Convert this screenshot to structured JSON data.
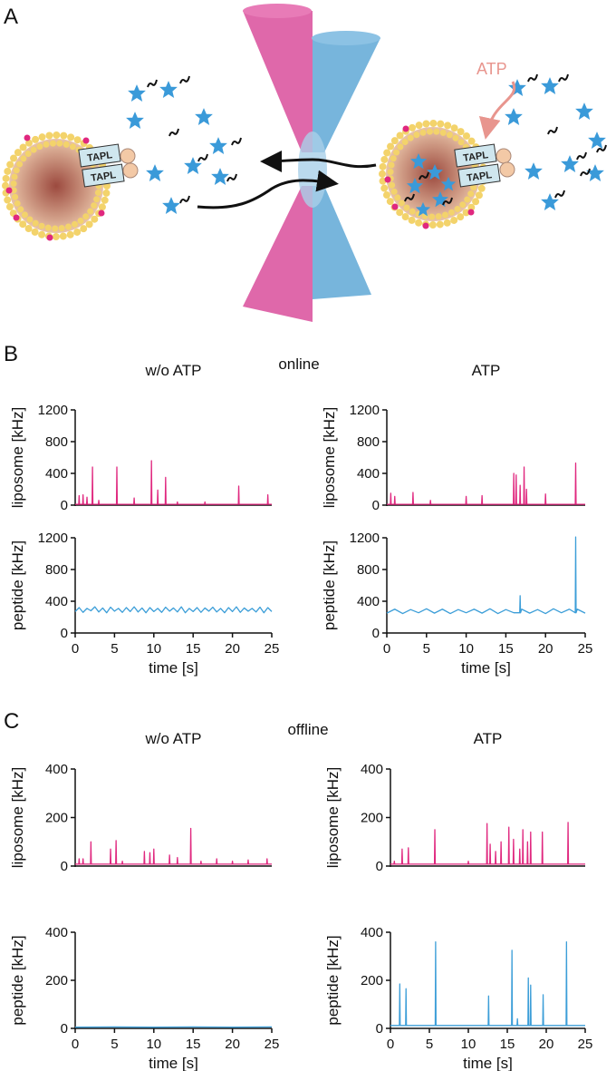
{
  "diagram": {
    "label": "A",
    "atp": "ATP",
    "tapl": [
      "TAPL",
      "TAPL",
      "TAPL",
      "TAPL"
    ]
  },
  "panels": [
    {
      "label": "B",
      "title": "online"
    },
    {
      "label": "C",
      "title": "offline"
    }
  ],
  "chart_data": [
    {
      "type": "line",
      "title": "w/o ATP",
      "ylabel": "liposome [kHz]",
      "color": "#e0287f",
      "xlim": [
        0,
        25
      ],
      "ylim": [
        0,
        1200
      ],
      "yticks": [
        0,
        400,
        800,
        1200
      ],
      "x": [
        0,
        0.45,
        0.5,
        0.55,
        0.95,
        1,
        1.05,
        1.45,
        1.5,
        1.55,
        2.15,
        2.2,
        2.25,
        2.95,
        3,
        3.05,
        5.25,
        5.3,
        5.35,
        7.45,
        7.5,
        7.55,
        9.65,
        9.7,
        9.75,
        10.45,
        10.5,
        10.55,
        11.45,
        11.5,
        11.55,
        12.95,
        13,
        13.05,
        16.45,
        16.5,
        16.55,
        20.75,
        20.8,
        20.85,
        24.45,
        24.5,
        24.55,
        25
      ],
      "values": [
        10,
        10,
        120,
        10,
        10,
        130,
        10,
        10,
        100,
        10,
        10,
        480,
        10,
        10,
        60,
        10,
        10,
        480,
        10,
        10,
        90,
        10,
        10,
        560,
        10,
        10,
        190,
        10,
        10,
        350,
        10,
        10,
        40,
        10,
        10,
        40,
        10,
        10,
        240,
        10,
        10,
        130,
        10,
        10
      ]
    },
    {
      "type": "line",
      "ylabel": "peptide [kHz]",
      "xlabel": "time [s]",
      "color": "#3c9ed8",
      "xlim": [
        0,
        25
      ],
      "ylim": [
        0,
        1200
      ],
      "yticks": [
        0,
        400,
        800,
        1200
      ],
      "xticks": [
        0,
        5,
        10,
        15,
        20,
        25
      ],
      "x": [
        0,
        0.5,
        1,
        1.5,
        2,
        2.5,
        3,
        3.5,
        4,
        4.5,
        5,
        5.5,
        6,
        6.5,
        7,
        7.5,
        8,
        8.5,
        9,
        9.5,
        10,
        10.5,
        11,
        11.5,
        12,
        12.5,
        13,
        13.5,
        14,
        14.5,
        15,
        15.5,
        16,
        16.5,
        17,
        17.5,
        18,
        18.5,
        19,
        19.5,
        20,
        20.5,
        21,
        21.5,
        22,
        22.5,
        23,
        23.5,
        24,
        24.5,
        25
      ],
      "values": [
        270,
        320,
        260,
        310,
        280,
        330,
        265,
        315,
        255,
        325,
        275,
        310,
        260,
        320,
        270,
        330,
        265,
        315,
        255,
        320,
        270,
        310,
        260,
        325,
        275,
        315,
        265,
        330,
        255,
        310,
        270,
        320,
        260,
        315,
        275,
        325,
        265,
        310,
        255,
        320,
        270,
        330,
        260,
        315,
        275,
        310,
        265,
        325,
        255,
        320,
        270
      ]
    },
    {
      "type": "line",
      "title": "ATP",
      "ylabel": "liposome [kHz]",
      "color": "#e0287f",
      "xlim": [
        0,
        25
      ],
      "ylim": [
        0,
        1200
      ],
      "yticks": [
        0,
        400,
        800,
        1200
      ],
      "x": [
        0,
        0.45,
        0.5,
        0.55,
        0.95,
        1,
        1.05,
        3.25,
        3.3,
        3.35,
        5.45,
        5.5,
        5.55,
        9.95,
        10,
        10.05,
        11.95,
        12,
        12.05,
        15.95,
        16,
        16.05,
        16.25,
        16.3,
        16.35,
        16.75,
        16.8,
        16.85,
        17.25,
        17.3,
        17.35,
        17.55,
        17.6,
        17.65,
        19.95,
        20,
        20.05,
        23.75,
        23.8,
        23.85,
        25
      ],
      "values": [
        10,
        10,
        150,
        10,
        10,
        110,
        10,
        10,
        160,
        10,
        10,
        60,
        10,
        10,
        110,
        10,
        10,
        120,
        10,
        10,
        400,
        10,
        10,
        380,
        10,
        10,
        250,
        10,
        10,
        480,
        10,
        10,
        200,
        10,
        10,
        140,
        10,
        10,
        530,
        10,
        10
      ]
    },
    {
      "type": "line",
      "ylabel": "peptide [kHz]",
      "xlabel": "time [s]",
      "color": "#3c9ed8",
      "xlim": [
        0,
        25
      ],
      "ylim": [
        0,
        1200
      ],
      "yticks": [
        0,
        400,
        800,
        1200
      ],
      "xticks": [
        0,
        5,
        10,
        15,
        20,
        25
      ],
      "x": [
        0,
        1,
        2,
        3,
        4,
        5,
        6,
        7,
        8,
        9,
        10,
        11,
        12,
        13,
        14,
        15,
        16,
        16.75,
        16.8,
        16.85,
        17,
        18,
        19,
        20,
        21,
        22,
        23,
        23.75,
        23.8,
        23.85,
        24,
        25
      ],
      "values": [
        250,
        300,
        245,
        295,
        255,
        305,
        250,
        300,
        245,
        295,
        255,
        300,
        250,
        305,
        245,
        295,
        255,
        255,
        470,
        255,
        300,
        250,
        295,
        245,
        305,
        255,
        300,
        255,
        1210,
        255,
        300,
        250
      ]
    },
    {
      "type": "line",
      "title": "w/o ATP",
      "ylabel": "liposome [kHz]",
      "color": "#e0287f",
      "xlim": [
        0,
        25
      ],
      "ylim": [
        0,
        400
      ],
      "yticks": [
        0,
        200,
        400
      ],
      "x": [
        0,
        0.45,
        0.5,
        0.55,
        0.95,
        1,
        1.05,
        1.95,
        2,
        2.05,
        4.45,
        4.5,
        4.55,
        5.15,
        5.2,
        5.25,
        5.95,
        6,
        6.05,
        8.75,
        8.8,
        8.85,
        9.45,
        9.5,
        9.55,
        9.95,
        10,
        10.05,
        11.95,
        12,
        12.05,
        12.95,
        13,
        13.05,
        14.65,
        14.7,
        14.75,
        15.95,
        16,
        16.05,
        17.95,
        18,
        18.05,
        19.95,
        20,
        20.05,
        21.95,
        22,
        22.05,
        24.35,
        24.4,
        24.45,
        25
      ],
      "values": [
        8,
        8,
        30,
        8,
        8,
        30,
        8,
        8,
        100,
        8,
        8,
        70,
        8,
        8,
        105,
        8,
        8,
        20,
        8,
        8,
        60,
        8,
        8,
        55,
        8,
        8,
        70,
        8,
        8,
        45,
        8,
        8,
        35,
        8,
        8,
        155,
        8,
        8,
        20,
        8,
        8,
        30,
        8,
        8,
        20,
        8,
        8,
        25,
        8,
        8,
        30,
        8,
        8
      ]
    },
    {
      "type": "line",
      "ylabel": "peptide [kHz]",
      "xlabel": "time [s]",
      "color": "#3c9ed8",
      "xlim": [
        0,
        25
      ],
      "ylim": [
        0,
        400
      ],
      "yticks": [
        0,
        200,
        400
      ],
      "xticks": [
        0,
        5,
        10,
        15,
        20,
        25
      ],
      "x": [
        0,
        5,
        10,
        15,
        20,
        25
      ],
      "values": [
        5,
        6,
        5,
        6,
        5,
        6
      ]
    },
    {
      "type": "line",
      "title": "ATP",
      "ylabel": "liposome [kHz]",
      "color": "#e0287f",
      "xlim": [
        0,
        25
      ],
      "ylim": [
        0,
        400
      ],
      "yticks": [
        0,
        200,
        400
      ],
      "x": [
        0,
        0.45,
        0.5,
        0.55,
        1.45,
        1.5,
        1.55,
        2.25,
        2.3,
        2.35,
        5.65,
        5.7,
        5.75,
        9.95,
        10,
        10.05,
        12.35,
        12.4,
        12.45,
        12.75,
        12.8,
        12.85,
        13.45,
        13.5,
        13.55,
        14.15,
        14.2,
        14.25,
        15.15,
        15.2,
        15.25,
        15.75,
        15.8,
        15.85,
        16.55,
        16.6,
        16.65,
        16.95,
        17,
        17.05,
        17.55,
        17.6,
        17.65,
        17.95,
        18,
        18.05,
        19.45,
        19.5,
        19.55,
        22.75,
        22.8,
        22.85,
        25
      ],
      "values": [
        8,
        8,
        20,
        8,
        8,
        70,
        8,
        8,
        75,
        8,
        8,
        150,
        8,
        8,
        20,
        8,
        8,
        175,
        8,
        8,
        90,
        8,
        8,
        60,
        8,
        8,
        100,
        8,
        8,
        160,
        8,
        8,
        110,
        8,
        8,
        70,
        8,
        8,
        150,
        8,
        8,
        100,
        8,
        8,
        140,
        8,
        8,
        140,
        8,
        8,
        180,
        8,
        8
      ]
    },
    {
      "type": "line",
      "ylabel": "peptide [kHz]",
      "xlabel": "time [s]",
      "color": "#3c9ed8",
      "xlim": [
        0,
        25
      ],
      "ylim": [
        0,
        400
      ],
      "yticks": [
        0,
        200,
        400
      ],
      "xticks": [
        0,
        5,
        10,
        15,
        20,
        25
      ],
      "x": [
        0,
        1.15,
        1.2,
        1.25,
        1.95,
        2,
        2.05,
        5.75,
        5.8,
        5.85,
        12.55,
        12.6,
        12.65,
        15.55,
        15.6,
        15.65,
        16.25,
        16.3,
        16.35,
        17.65,
        17.7,
        17.75,
        17.95,
        18,
        18.05,
        19.55,
        19.6,
        19.65,
        22.55,
        22.6,
        22.65,
        25
      ],
      "values": [
        12,
        12,
        185,
        12,
        12,
        165,
        12,
        12,
        360,
        12,
        12,
        135,
        12,
        12,
        325,
        12,
        12,
        40,
        12,
        12,
        210,
        12,
        12,
        180,
        12,
        12,
        140,
        12,
        12,
        360,
        12,
        12
      ]
    }
  ]
}
